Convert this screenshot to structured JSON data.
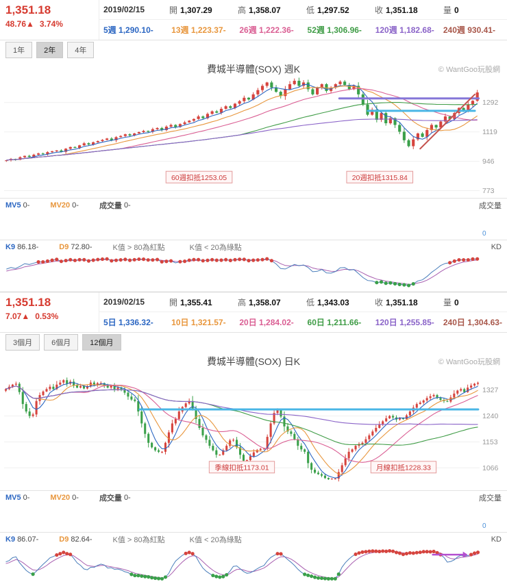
{
  "watermark": "© WantGoo玩股網",
  "colors": {
    "up": "#d6443e",
    "down": "#3aa04a",
    "k_line": "#4a7ebb",
    "d_line": "#a85fb0",
    "accent_red": "#d63a2f"
  },
  "weekly": {
    "quote": {
      "price": "1,351.18",
      "change": "48.76▲",
      "pct": "3.74%"
    },
    "info": [
      {
        "label": "",
        "value": "2019/02/15"
      },
      {
        "label": "開",
        "value": "1,307.29"
      },
      {
        "label": "高",
        "value": "1,358.07"
      },
      {
        "label": "低",
        "value": "1,297.52"
      },
      {
        "label": "收",
        "value": "1,351.18"
      },
      {
        "label": "量",
        "value": "0"
      }
    ],
    "ma": [
      {
        "label": "5週",
        "value": "1,290.10-",
        "color": "#2b66c2"
      },
      {
        "label": "13週",
        "value": "1,223.37-",
        "color": "#e8963c"
      },
      {
        "label": "26週",
        "value": "1,222.36-",
        "color": "#da5e93"
      },
      {
        "label": "52週",
        "value": "1,306.96-",
        "color": "#3f9c46"
      },
      {
        "label": "120週",
        "value": "1,182.68-",
        "color": "#8a63c8"
      },
      {
        "label": "240週",
        "value": "930.41-",
        "color": "#a8574a"
      }
    ],
    "tabs": [
      {
        "label": "1年",
        "active": false
      },
      {
        "label": "2年",
        "active": true
      },
      {
        "label": "4年",
        "active": false
      }
    ],
    "title": "費城半導體(SOX) 週K",
    "vol": {
      "mv5_l": "MV5",
      "mv5_v": "0-",
      "mv20_l": "MV20",
      "mv20_v": "0-",
      "v_l": "成交量",
      "v_v": "0-",
      "right": "成交量",
      "zero": "0"
    },
    "kd": {
      "k_l": "K9",
      "k_v": "86.18-",
      "d_l": "D9",
      "d_v": "72.80-",
      "n1": "K值 > 80為紅點",
      "n2": "K值 < 20為綠點",
      "right": "KD"
    }
  },
  "daily": {
    "quote": {
      "price": "1,351.18",
      "change": "7.07▲",
      "pct": "0.53%"
    },
    "info": [
      {
        "label": "",
        "value": "2019/02/15"
      },
      {
        "label": "開",
        "value": "1,355.41"
      },
      {
        "label": "高",
        "value": "1,358.07"
      },
      {
        "label": "低",
        "value": "1,343.03"
      },
      {
        "label": "收",
        "value": "1,351.18"
      },
      {
        "label": "量",
        "value": "0"
      }
    ],
    "ma": [
      {
        "label": "5日",
        "value": "1,336.32-",
        "color": "#2b66c2"
      },
      {
        "label": "10日",
        "value": "1,321.57-",
        "color": "#e8963c"
      },
      {
        "label": "20日",
        "value": "1,284.02-",
        "color": "#da5e93"
      },
      {
        "label": "60日",
        "value": "1,211.66-",
        "color": "#3f9c46"
      },
      {
        "label": "120日",
        "value": "1,255.85-",
        "color": "#8a63c8"
      },
      {
        "label": "240日",
        "value": "1,304.63-",
        "color": "#a8574a"
      }
    ],
    "tabs": [
      {
        "label": "3個月",
        "active": false
      },
      {
        "label": "6個月",
        "active": false
      },
      {
        "label": "12個月",
        "active": true
      }
    ],
    "title": "費城半導體(SOX) 日K",
    "vol": {
      "mv5_l": "MV5",
      "mv5_v": "0-",
      "mv20_l": "MV20",
      "mv20_v": "0-",
      "v_l": "成交量",
      "v_v": "0-",
      "right": "成交量",
      "zero": "0"
    },
    "kd": {
      "k_l": "K9",
      "k_v": "86.07-",
      "d_l": "D9",
      "d_v": "82.64-",
      "n1": "K值 > 80為紅點",
      "n2": "K值 < 20為綠點",
      "right": "KD"
    }
  },
  "chart_data": [
    {
      "type": "candlestick",
      "panel": "weekly",
      "title": "費城半導體(SOX) 週K",
      "ylabels": [
        1292,
        1119,
        946,
        773
      ],
      "yrange": [
        755,
        1440
      ],
      "closes": [
        952,
        960,
        955,
        970,
        978,
        972,
        985,
        992,
        988,
        1000,
        1005,
        1010,
        1002,
        1020,
        1030,
        1025,
        1040,
        1052,
        1045,
        1058,
        1065,
        1072,
        1080,
        1070,
        1088,
        1095,
        1105,
        1098,
        1110,
        1118,
        1125,
        1120,
        1135,
        1142,
        1130,
        1150,
        1160,
        1148,
        1165,
        1175,
        1185,
        1195,
        1210,
        1200,
        1225,
        1240,
        1232,
        1255,
        1270,
        1260,
        1285,
        1300,
        1320,
        1310,
        1340,
        1365,
        1390,
        1410,
        1380,
        1355,
        1330,
        1370,
        1400,
        1420,
        1390,
        1410,
        1370,
        1340,
        1380,
        1400,
        1360,
        1380,
        1400,
        1415,
        1395,
        1370,
        1390,
        1340,
        1280,
        1220,
        1250,
        1190,
        1230,
        1170,
        1200,
        1160,
        1120,
        1070,
        1035,
        1075,
        1110,
        1090,
        1130,
        1160,
        1145,
        1180,
        1210,
        1195,
        1230,
        1260,
        1245,
        1280,
        1302,
        1351.18
      ],
      "ma_windows": [
        {
          "n": 5,
          "color": "#2b66c2"
        },
        {
          "n": 13,
          "color": "#e8963c"
        },
        {
          "n": 26,
          "color": "#da5e93"
        },
        {
          "n": 52,
          "color": "#3f9c46"
        },
        {
          "n": 120,
          "color": "#8a63c8"
        }
      ],
      "lines": [
        {
          "kind": "h",
          "price": 1316,
          "x1": 0.705,
          "x2": 0.998,
          "color": "#8577d8",
          "width": 3
        },
        {
          "kind": "h",
          "price": 1243,
          "x1": 0.765,
          "x2": 0.99,
          "color": "#49b6e5",
          "width": 3
        },
        {
          "kind": "seg",
          "x1": 0.875,
          "p1": 1020,
          "x2": 0.99,
          "p2": 1340,
          "color": "#c4524e",
          "width": 2
        }
      ],
      "annotations": [
        {
          "text": "60週扣抵1253.05",
          "x": 0.41,
          "y": 0.86
        },
        {
          "text": "20週扣抵1315.84",
          "x": 0.79,
          "y": 0.86
        }
      ],
      "volume": 0,
      "vol_zero": "0",
      "kd_last": {
        "k": 86.18,
        "d": 72.8
      }
    },
    {
      "type": "candlestick",
      "panel": "daily",
      "title": "費城半導體(SOX) 日K",
      "ylabels": [
        1327,
        1240,
        1153,
        1066
      ],
      "yrange": [
        1005,
        1395
      ],
      "closes": [
        1330,
        1338,
        1345,
        1348,
        1320,
        1280,
        1255,
        1240,
        1245,
        1290,
        1310,
        1322,
        1330,
        1338,
        1330,
        1345,
        1352,
        1360,
        1348,
        1355,
        1342,
        1335,
        1340,
        1332,
        1340,
        1352,
        1345,
        1350,
        1350,
        1342,
        1335,
        1342,
        1330,
        1335,
        1330,
        1318,
        1305,
        1295,
        1290,
        1255,
        1215,
        1180,
        1150,
        1135,
        1125,
        1120,
        1120,
        1150,
        1185,
        1215,
        1230,
        1255,
        1270,
        1282,
        1290,
        1262,
        1230,
        1200,
        1175,
        1160,
        1140,
        1125,
        1110,
        1110,
        1125,
        1140,
        1158,
        1160,
        1135,
        1110,
        1090,
        1092,
        1105,
        1118,
        1126,
        1130,
        1130,
        1170,
        1215,
        1250,
        1260,
        1238,
        1205,
        1188,
        1180,
        1162,
        1140,
        1128,
        1120,
        1082,
        1060,
        1050,
        1045,
        1040,
        1032,
        1028,
        1030,
        1030,
        1052,
        1075,
        1098,
        1120,
        1128,
        1140,
        1146,
        1150,
        1162,
        1175,
        1188,
        1200,
        1212,
        1222,
        1232,
        1240,
        1235,
        1228,
        1232,
        1230,
        1242,
        1255,
        1268,
        1280,
        1285,
        1292,
        1300,
        1306,
        1310,
        1300,
        1294,
        1290,
        1288,
        1302,
        1315,
        1325,
        1330,
        1320,
        1335,
        1342,
        1348,
        1351.18
      ],
      "ma_windows": [
        {
          "n": 5,
          "color": "#2b66c2"
        },
        {
          "n": 10,
          "color": "#e8963c"
        },
        {
          "n": 20,
          "color": "#da5e93"
        },
        {
          "n": 60,
          "color": "#3f9c46"
        },
        {
          "n": 120,
          "color": "#8a63c8"
        }
      ],
      "lines": [
        {
          "kind": "h",
          "price": 1262,
          "x1": 0.285,
          "x2": 0.997,
          "color": "#49b6e5",
          "width": 3
        }
      ],
      "annotations": [
        {
          "text": "季線扣抵1173.01",
          "x": 0.5,
          "y": 0.84
        },
        {
          "text": "月線扣抵1228.33",
          "x": 0.84,
          "y": 0.84
        }
      ],
      "volume": 0,
      "vol_zero": "0",
      "kd_arrow": "#b44fd0",
      "kd_last": {
        "k": 86.07,
        "d": 82.64
      }
    }
  ]
}
